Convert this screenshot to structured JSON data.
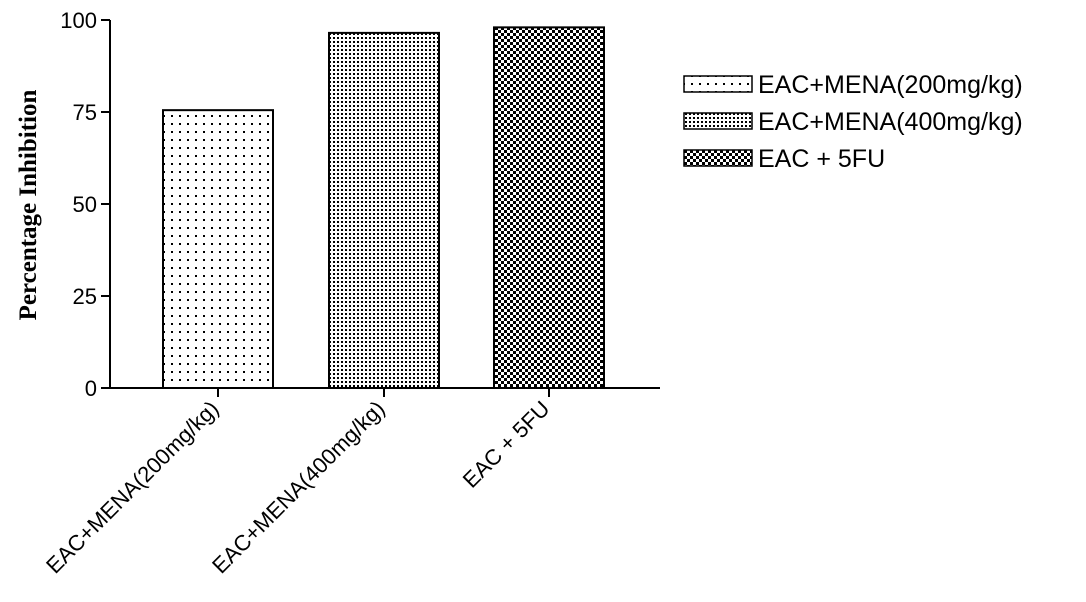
{
  "chart_data": {
    "type": "bar",
    "title": "",
    "xlabel": "",
    "ylabel": "Percentage Inhibition",
    "ylim": [
      0,
      100
    ],
    "yticks": [
      0,
      25,
      50,
      75,
      100
    ],
    "categories": [
      "EAC+MENA(200mg/kg)",
      "EAC+MENA(400mg/kg)",
      "EAC + 5FU"
    ],
    "values": [
      75.5,
      96.5,
      98
    ],
    "patterns": [
      "sparse-dots",
      "dense-dots",
      "checker"
    ],
    "grid": false,
    "legend_position": "right",
    "legend": [
      "EAC+MENA(200mg/kg)",
      "EAC+MENA(400mg/kg)",
      "EAC + 5FU"
    ]
  }
}
